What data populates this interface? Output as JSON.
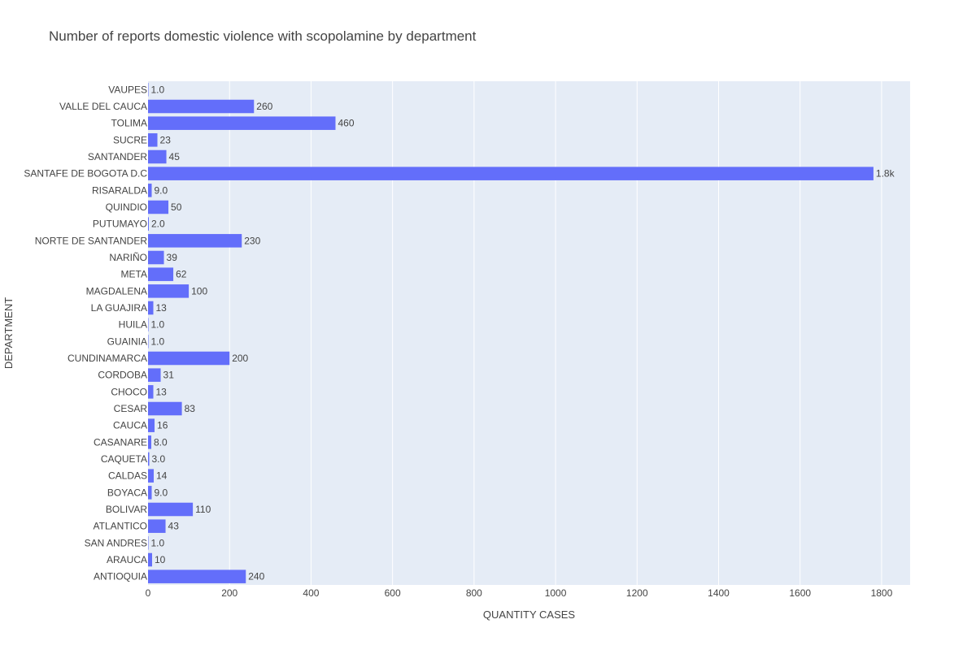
{
  "chart_data": {
    "type": "bar",
    "orientation": "horizontal",
    "title": "Number of reports domestic violence with scopolamine by department",
    "xlabel": "QUANTITY CASES",
    "ylabel": "DEPARTMENT",
    "xlim": [
      0,
      1870
    ],
    "x_ticks": [
      0,
      200,
      400,
      600,
      800,
      1000,
      1200,
      1400,
      1600,
      1800
    ],
    "grid": true,
    "bar_color": "#636efa",
    "plot_background": "#e5ecf6",
    "categories": [
      "ANTIOQUIA",
      "ARAUCA",
      "SAN ANDRES",
      "ATLANTICO",
      "BOLIVAR",
      "BOYACA",
      "CALDAS",
      "CAQUETA",
      "CASANARE",
      "CAUCA",
      "CESAR",
      "CHOCO",
      "CORDOBA",
      "CUNDINAMARCA",
      "GUAINIA",
      "HUILA",
      "LA GUAJIRA",
      "MAGDALENA",
      "META",
      "NARIÑO",
      "NORTE DE SANTANDER",
      "PUTUMAYO",
      "QUINDIO",
      "RISARALDA",
      "SANTAFE DE BOGOTA D.C",
      "SANTANDER",
      "SUCRE",
      "TOLIMA",
      "VALLE DEL CAUCA",
      "VAUPES"
    ],
    "values": [
      240,
      10,
      1,
      43,
      110,
      9,
      14,
      3,
      8,
      16,
      83,
      13,
      31,
      200,
      1,
      1,
      13,
      100,
      62,
      39,
      230,
      2,
      50,
      9,
      1780,
      45,
      23,
      460,
      260,
      1
    ],
    "data_labels": [
      "240",
      "10",
      "1.0",
      "43",
      "110",
      "9.0",
      "14",
      "3.0",
      "8.0",
      "16",
      "83",
      "13",
      "31",
      "200",
      "1.0",
      "1.0",
      "13",
      "100",
      "62",
      "39",
      "230",
      "2.0",
      "50",
      "9.0",
      "1.8k",
      "45",
      "23",
      "460",
      "260",
      "1.0"
    ]
  }
}
